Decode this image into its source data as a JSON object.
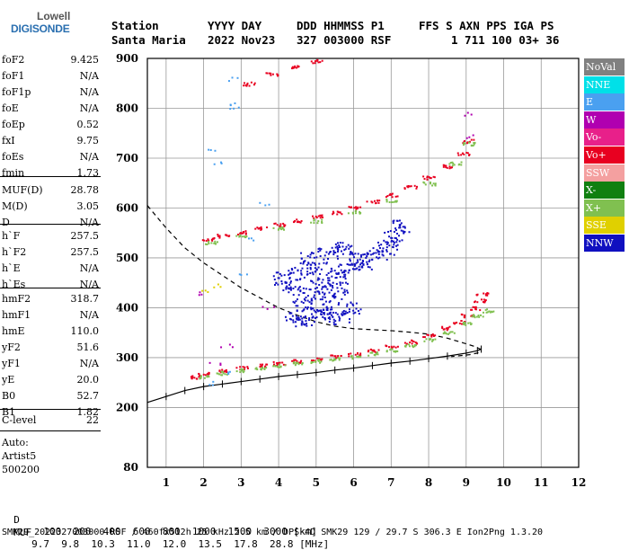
{
  "logo": {
    "line1": "Lowell",
    "line2": "DIGISONDE"
  },
  "header": {
    "line1": [
      "Station",
      "YYYY DAY",
      "DDD HHMMSS P1",
      "FFS S AXN PPS IGA PS"
    ],
    "line2": [
      "Santa Maria",
      "2022 Nov23",
      "327 003000 RSF",
      "1 711 100 03+ 36"
    ]
  },
  "params": [
    {
      "label": "foF2",
      "value": "9.425"
    },
    {
      "label": "foF1",
      "value": "N/A"
    },
    {
      "label": "foF1p",
      "value": "N/A"
    },
    {
      "label": "foE",
      "value": "N/A"
    },
    {
      "label": "foEp",
      "value": "0.52"
    },
    {
      "label": "fxI",
      "value": "9.75"
    },
    {
      "label": "foEs",
      "value": "N/A"
    },
    {
      "label": "fmin",
      "value": "1.73"
    },
    {
      "label": "MUF(D)",
      "value": "28.78"
    },
    {
      "label": "M(D)",
      "value": "3.05"
    },
    {
      "label": "D",
      "value": "N/A"
    },
    {
      "label": "h`F",
      "value": "257.5"
    },
    {
      "label": "h`F2",
      "value": "257.5"
    },
    {
      "label": "h`E",
      "value": "N/A"
    },
    {
      "label": "h`Es",
      "value": "N/A"
    },
    {
      "label": "hmF2",
      "value": "318.7"
    },
    {
      "label": "hmF1",
      "value": "N/A"
    },
    {
      "label": "hmE",
      "value": "110.0"
    },
    {
      "label": "yF2",
      "value": "51.6"
    },
    {
      "label": "yF1",
      "value": "N/A"
    },
    {
      "label": "yE",
      "value": "20.0"
    },
    {
      "label": "B0",
      "value": "52.7"
    },
    {
      "label": "B1",
      "value": "1.82"
    },
    {
      "label": "C-level",
      "value": "22"
    }
  ],
  "auto": {
    "line1": "Auto:",
    "line2": "Artist5",
    "line3": "500200"
  },
  "legend": [
    {
      "label": "NoVal",
      "color": "#808080"
    },
    {
      "label": "NNE",
      "color": "#00e0e8"
    },
    {
      "label": "E",
      "color": "#4aa0f0"
    },
    {
      "label": "W",
      "color": "#b000b0"
    },
    {
      "label": "Vo-",
      "color": "#e8208a"
    },
    {
      "label": "Vo+",
      "color": "#e80020"
    },
    {
      "label": "SSW",
      "color": "#f4a0a0"
    },
    {
      "label": "X-",
      "color": "#108010"
    },
    {
      "label": "X+",
      "color": "#80c050"
    },
    {
      "label": "SSE",
      "color": "#e0d000"
    },
    {
      "label": "NNW",
      "color": "#1010c0"
    }
  ],
  "footer": {
    "d_label": "D",
    "d_values": [
      "100",
      "200",
      "400",
      "600",
      "800",
      "1000",
      "1500",
      "3000 [km]"
    ],
    "muf_label": "MUF",
    "muf_values": [
      "9.7",
      "9.8",
      "10.3",
      "11.0",
      "12.0",
      "13.5",
      "17.8",
      "28.8 [MHz]"
    ],
    "info": "SMK29_2022327003000.RSF / 460fx512h 25 kHz 2.5 km / DPS-4D SMK29 129 / 29.7 S 306.3 E Ion2Png 1.3.20"
  },
  "chart_data": {
    "type": "scatter",
    "xlim": [
      0.5,
      12
    ],
    "ylim": [
      80,
      900
    ],
    "x_ticks": [
      1,
      2,
      3,
      4,
      5,
      6,
      7,
      8,
      9,
      10,
      11,
      12
    ],
    "y_ticks": [
      80,
      200,
      300,
      400,
      500,
      600,
      700,
      800,
      900
    ],
    "grid": true,
    "series": [
      {
        "name": "Vo+",
        "color": "#e80020",
        "points": [
          [
            1.75,
            262
          ],
          [
            2.0,
            268
          ],
          [
            2.5,
            275
          ],
          [
            3.0,
            280
          ],
          [
            3.5,
            285
          ],
          [
            4.0,
            290
          ],
          [
            4.5,
            294
          ],
          [
            5.0,
            298
          ],
          [
            5.5,
            303
          ],
          [
            6.0,
            308
          ],
          [
            6.5,
            315
          ],
          [
            7.0,
            323
          ],
          [
            7.5,
            333
          ],
          [
            8.0,
            345
          ],
          [
            8.5,
            360
          ],
          [
            8.8,
            372
          ],
          [
            9.0,
            385
          ],
          [
            9.2,
            400
          ],
          [
            9.35,
            415
          ],
          [
            9.42,
            430
          ],
          [
            2.1,
            538
          ],
          [
            2.5,
            545
          ],
          [
            3.0,
            552
          ],
          [
            3.5,
            560
          ],
          [
            4.0,
            568
          ],
          [
            4.5,
            576
          ],
          [
            5.0,
            584
          ],
          [
            5.5,
            592
          ],
          [
            6.0,
            602
          ],
          [
            6.5,
            614
          ],
          [
            7.0,
            627
          ],
          [
            7.5,
            643
          ],
          [
            8.0,
            662
          ],
          [
            8.5,
            685
          ],
          [
            8.9,
            710
          ],
          [
            9.05,
            735
          ],
          [
            3.2,
            850
          ],
          [
            3.8,
            870
          ],
          [
            4.4,
            885
          ],
          [
            5.0,
            895
          ]
        ]
      },
      {
        "name": "X+",
        "color": "#80c050",
        "points": [
          [
            2.0,
            262
          ],
          [
            2.5,
            270
          ],
          [
            3.0,
            275
          ],
          [
            3.5,
            280
          ],
          [
            4.0,
            285
          ],
          [
            4.5,
            290
          ],
          [
            5.0,
            294
          ],
          [
            5.5,
            298
          ],
          [
            6.0,
            303
          ],
          [
            6.5,
            309
          ],
          [
            7.0,
            316
          ],
          [
            7.5,
            325
          ],
          [
            8.0,
            336
          ],
          [
            8.5,
            350
          ],
          [
            9.0,
            370
          ],
          [
            9.3,
            385
          ],
          [
            9.55,
            395
          ],
          [
            2.2,
            532
          ],
          [
            3.0,
            545
          ],
          [
            4.0,
            560
          ],
          [
            5.0,
            575
          ],
          [
            6.0,
            592
          ],
          [
            7.0,
            617
          ],
          [
            8.0,
            650
          ],
          [
            8.7,
            690
          ],
          [
            9.05,
            730
          ]
        ]
      },
      {
        "name": "NNW",
        "color": "#1010c0",
        "points": [
          [
            4.1,
            460
          ],
          [
            4.3,
            440
          ],
          [
            4.5,
            470
          ],
          [
            4.6,
            410
          ],
          [
            4.8,
            500
          ],
          [
            4.9,
            430
          ],
          [
            5.0,
            480
          ],
          [
            5.1,
            450
          ],
          [
            5.2,
            395
          ],
          [
            5.3,
            510
          ],
          [
            5.4,
            420
          ],
          [
            5.5,
            470
          ],
          [
            5.6,
            440
          ],
          [
            5.7,
            520
          ],
          [
            5.8,
            480
          ],
          [
            5.9,
            400
          ],
          [
            6.1,
            500
          ],
          [
            6.3,
            490
          ],
          [
            6.6,
            510
          ],
          [
            6.9,
            520
          ],
          [
            7.05,
            545
          ],
          [
            7.2,
            565
          ],
          [
            4.4,
            385
          ],
          [
            4.7,
            375
          ],
          [
            5.1,
            390
          ],
          [
            5.6,
            380
          ]
        ]
      },
      {
        "name": "E",
        "color": "#4aa0f0",
        "points": [
          [
            2.25,
            720
          ],
          [
            2.3,
            690
          ],
          [
            2.65,
            810
          ],
          [
            2.75,
            800
          ],
          [
            2.8,
            860
          ],
          [
            2.7,
            270
          ],
          [
            2.3,
            250
          ],
          [
            3.1,
            470
          ],
          [
            3.6,
            610
          ],
          [
            3.3,
            540
          ]
        ]
      },
      {
        "name": "W",
        "color": "#b000b0",
        "points": [
          [
            9.1,
            790
          ],
          [
            9.0,
            745
          ],
          [
            2.3,
            290
          ],
          [
            2.6,
            325
          ],
          [
            1.95,
            430
          ],
          [
            3.7,
            400
          ]
        ]
      },
      {
        "name": "SSE",
        "color": "#e0d000",
        "points": [
          [
            2.1,
            436
          ],
          [
            2.4,
            445
          ]
        ]
      }
    ],
    "profile_curve": {
      "style": "dashed",
      "points": [
        [
          0.5,
          605
        ],
        [
          1.0,
          560
        ],
        [
          1.5,
          520
        ],
        [
          2.0,
          490
        ],
        [
          2.5,
          465
        ],
        [
          3.0,
          440
        ],
        [
          3.5,
          420
        ],
        [
          4.0,
          400
        ],
        [
          4.5,
          385
        ],
        [
          5.0,
          372
        ],
        [
          5.5,
          363
        ],
        [
          6.0,
          358
        ],
        [
          6.5,
          356
        ],
        [
          7.0,
          354
        ],
        [
          7.5,
          351
        ],
        [
          8.0,
          347
        ],
        [
          8.5,
          339
        ],
        [
          8.9,
          330
        ],
        [
          9.2,
          323
        ],
        [
          9.38,
          317
        ],
        [
          9.35,
          310
        ],
        [
          9.1,
          306
        ],
        [
          8.6,
          302
        ]
      ]
    },
    "trace_curve": {
      "style": "ticked",
      "points": [
        [
          0.5,
          210
        ],
        [
          1.0,
          222
        ],
        [
          1.5,
          234
        ],
        [
          2.0,
          242
        ],
        [
          2.5,
          247
        ],
        [
          3.0,
          252
        ],
        [
          3.5,
          257
        ],
        [
          4.0,
          262
        ],
        [
          4.5,
          266
        ],
        [
          5.0,
          270
        ],
        [
          5.5,
          275
        ],
        [
          6.0,
          279
        ],
        [
          6.5,
          284
        ],
        [
          7.0,
          289
        ],
        [
          7.5,
          293
        ],
        [
          8.0,
          298
        ],
        [
          8.5,
          303
        ],
        [
          9.0,
          309
        ],
        [
          9.3,
          314
        ],
        [
          9.4,
          317
        ]
      ]
    }
  }
}
